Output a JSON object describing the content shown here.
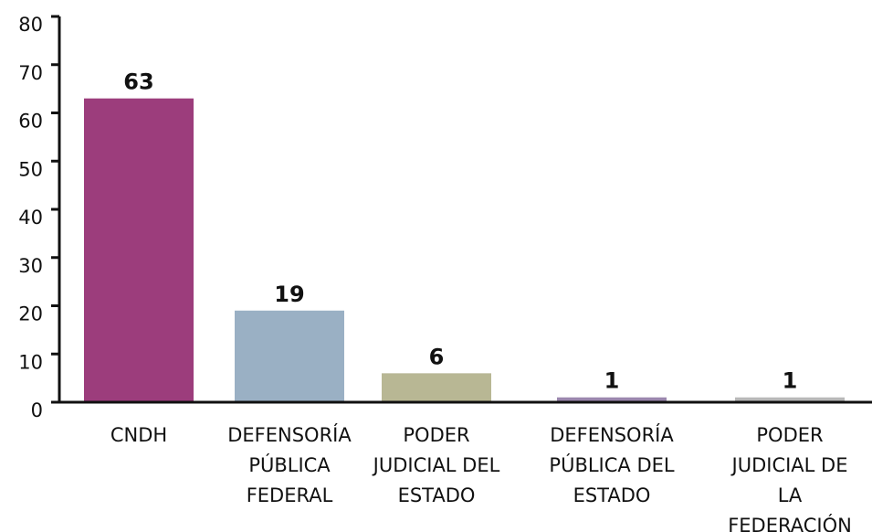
{
  "chart_data": {
    "type": "bar",
    "categories": [
      "CNDH",
      "DEFENSORÍA PÚBLICA FEDERAL",
      "PODER JUDICIAL DEL ESTADO",
      "DEFENSORÍA PÚBLICA DEL ESTADO",
      "PODER JUDICIAL DE LA FEDERACIÓN"
    ],
    "values": [
      63,
      19,
      6,
      1,
      1
    ],
    "colors": [
      "#9c3d7c",
      "#9ab0c4",
      "#b8b794",
      "#9b87ae",
      "#b8b8b8"
    ],
    "ylim": [
      0,
      80
    ],
    "yticks": [
      0,
      10,
      20,
      30,
      40,
      50,
      60,
      70,
      80
    ],
    "grid": false
  }
}
